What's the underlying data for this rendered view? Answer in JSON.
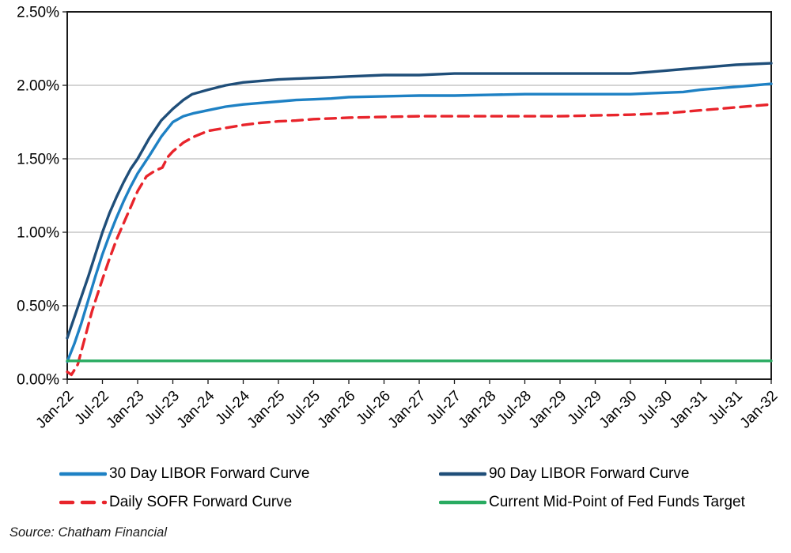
{
  "source_note": "Source: Chatham Financial",
  "chart_data": {
    "type": "line",
    "title": "",
    "xlabel": "",
    "ylabel": "",
    "ylim": [
      0,
      2.5
    ],
    "y_tick_step": 0.5,
    "y_ticks": [
      "0.00%",
      "0.50%",
      "1.00%",
      "1.50%",
      "2.00%",
      "2.50%"
    ],
    "x_labels": [
      "Jan-22",
      "Jul-22",
      "Jan-23",
      "Jul-23",
      "Jan-24",
      "Jul-24",
      "Jan-25",
      "Jul-25",
      "Jan-26",
      "Jul-26",
      "Jan-27",
      "Jul-27",
      "Jan-28",
      "Jul-28",
      "Jan-29",
      "Jul-29",
      "Jan-30",
      "Jul-30",
      "Jan-31",
      "Jul-31",
      "Jan-32"
    ],
    "grid": "horizontal",
    "grid_color": "#A8A8A8",
    "border_color": "#1A1A1A",
    "legend_position": "bottom",
    "series": [
      {
        "name": "30 Day LIBOR Forward Curve",
        "color": "#1E81C4",
        "style": "solid",
        "values_at_labels": [
          0.12,
          0.85,
          1.4,
          1.75,
          1.83,
          1.87,
          1.89,
          1.91,
          1.92,
          1.93,
          1.93,
          1.93,
          1.94,
          1.94,
          1.94,
          1.94,
          1.94,
          1.95,
          1.97,
          1.99,
          2.01
        ],
        "points": [
          [
            0,
            0.12
          ],
          [
            0.2,
            0.24
          ],
          [
            0.4,
            0.38
          ],
          [
            0.6,
            0.54
          ],
          [
            0.8,
            0.7
          ],
          [
            1,
            0.85
          ],
          [
            1.2,
            0.98
          ],
          [
            1.4,
            1.1
          ],
          [
            1.6,
            1.21
          ],
          [
            1.8,
            1.31
          ],
          [
            2,
            1.4
          ],
          [
            2.33,
            1.52
          ],
          [
            2.67,
            1.65
          ],
          [
            3,
            1.75
          ],
          [
            3.3,
            1.79
          ],
          [
            3.6,
            1.81
          ],
          [
            4,
            1.83
          ],
          [
            4.5,
            1.855
          ],
          [
            5,
            1.87
          ],
          [
            5.5,
            1.88
          ],
          [
            6,
            1.89
          ],
          [
            6.5,
            1.9
          ],
          [
            7,
            1.905
          ],
          [
            7.5,
            1.91
          ],
          [
            8,
            1.92
          ],
          [
            9,
            1.925
          ],
          [
            10,
            1.93
          ],
          [
            11,
            1.93
          ],
          [
            12,
            1.935
          ],
          [
            13,
            1.94
          ],
          [
            14,
            1.94
          ],
          [
            15,
            1.94
          ],
          [
            16,
            1.94
          ],
          [
            16.5,
            1.945
          ],
          [
            17,
            1.95
          ],
          [
            17.5,
            1.955
          ],
          [
            18,
            1.97
          ],
          [
            18.5,
            1.98
          ],
          [
            19,
            1.99
          ],
          [
            19.5,
            2
          ],
          [
            20,
            2.01
          ]
        ]
      },
      {
        "name": "90 Day LIBOR Forward Curve",
        "color": "#1F4E79",
        "style": "solid",
        "values_at_labels": [
          0.28,
          1.0,
          1.5,
          1.84,
          1.97,
          2.02,
          2.04,
          2.05,
          2.06,
          2.07,
          2.07,
          2.08,
          2.08,
          2.08,
          2.08,
          2.08,
          2.08,
          2.1,
          2.12,
          2.14,
          2.15
        ],
        "points": [
          [
            0,
            0.28
          ],
          [
            0.2,
            0.42
          ],
          [
            0.4,
            0.56
          ],
          [
            0.6,
            0.7
          ],
          [
            0.8,
            0.85
          ],
          [
            1,
            1
          ],
          [
            1.2,
            1.13
          ],
          [
            1.4,
            1.24
          ],
          [
            1.6,
            1.34
          ],
          [
            1.8,
            1.43
          ],
          [
            2,
            1.5
          ],
          [
            2.33,
            1.64
          ],
          [
            2.67,
            1.76
          ],
          [
            3,
            1.84
          ],
          [
            3.3,
            1.9
          ],
          [
            3.55,
            1.94
          ],
          [
            4,
            1.97
          ],
          [
            4.5,
            2
          ],
          [
            5,
            2.02
          ],
          [
            5.5,
            2.03
          ],
          [
            6,
            2.04
          ],
          [
            6.5,
            2.045
          ],
          [
            7,
            2.05
          ],
          [
            7.5,
            2.055
          ],
          [
            8,
            2.06
          ],
          [
            9,
            2.07
          ],
          [
            10,
            2.07
          ],
          [
            11,
            2.08
          ],
          [
            12,
            2.08
          ],
          [
            13,
            2.08
          ],
          [
            14,
            2.08
          ],
          [
            15,
            2.08
          ],
          [
            16,
            2.08
          ],
          [
            16.5,
            2.09
          ],
          [
            17,
            2.1
          ],
          [
            17.5,
            2.11
          ],
          [
            18,
            2.12
          ],
          [
            18.5,
            2.13
          ],
          [
            19,
            2.14
          ],
          [
            19.5,
            2.145
          ],
          [
            20,
            2.15
          ]
        ]
      },
      {
        "name": "Daily SOFR Forward Curve",
        "color": "#E8242B",
        "style": "dashed",
        "values_at_labels": [
          0.05,
          0.68,
          1.28,
          1.55,
          1.69,
          1.73,
          1.76,
          1.77,
          1.78,
          1.785,
          1.79,
          1.79,
          1.79,
          1.79,
          1.79,
          1.795,
          1.8,
          1.81,
          1.83,
          1.85,
          1.87
        ],
        "points": [
          [
            0,
            0.05
          ],
          [
            0.12,
            0.03
          ],
          [
            0.3,
            0.1
          ],
          [
            0.5,
            0.28
          ],
          [
            0.7,
            0.46
          ],
          [
            0.85,
            0.57
          ],
          [
            1,
            0.68
          ],
          [
            1.2,
            0.82
          ],
          [
            1.4,
            0.95
          ],
          [
            1.6,
            1.06
          ],
          [
            1.8,
            1.17
          ],
          [
            2,
            1.28
          ],
          [
            2.25,
            1.38
          ],
          [
            2.5,
            1.42
          ],
          [
            2.7,
            1.44
          ],
          [
            2.85,
            1.51
          ],
          [
            3,
            1.55
          ],
          [
            3.3,
            1.61
          ],
          [
            3.6,
            1.65
          ],
          [
            4,
            1.69
          ],
          [
            4.5,
            1.71
          ],
          [
            5,
            1.73
          ],
          [
            5.5,
            1.745
          ],
          [
            6,
            1.755
          ],
          [
            6.5,
            1.76
          ],
          [
            7,
            1.77
          ],
          [
            7.5,
            1.775
          ],
          [
            8,
            1.78
          ],
          [
            9,
            1.785
          ],
          [
            10,
            1.79
          ],
          [
            11,
            1.79
          ],
          [
            12,
            1.79
          ],
          [
            13,
            1.79
          ],
          [
            14,
            1.79
          ],
          [
            15,
            1.795
          ],
          [
            16,
            1.8
          ],
          [
            16.5,
            1.805
          ],
          [
            17,
            1.81
          ],
          [
            17.5,
            1.82
          ],
          [
            18,
            1.83
          ],
          [
            18.5,
            1.84
          ],
          [
            19,
            1.85
          ],
          [
            19.5,
            1.86
          ],
          [
            20,
            1.87
          ]
        ]
      },
      {
        "name": "Current Mid-Point of Fed Funds Target",
        "color": "#29AB61",
        "style": "solid",
        "values_at_labels": [
          0.125,
          0.125,
          0.125,
          0.125,
          0.125,
          0.125,
          0.125,
          0.125,
          0.125,
          0.125,
          0.125,
          0.125,
          0.125,
          0.125,
          0.125,
          0.125,
          0.125,
          0.125,
          0.125,
          0.125,
          0.125
        ],
        "points": [
          [
            0,
            0.125
          ],
          [
            20,
            0.125
          ]
        ]
      }
    ]
  }
}
